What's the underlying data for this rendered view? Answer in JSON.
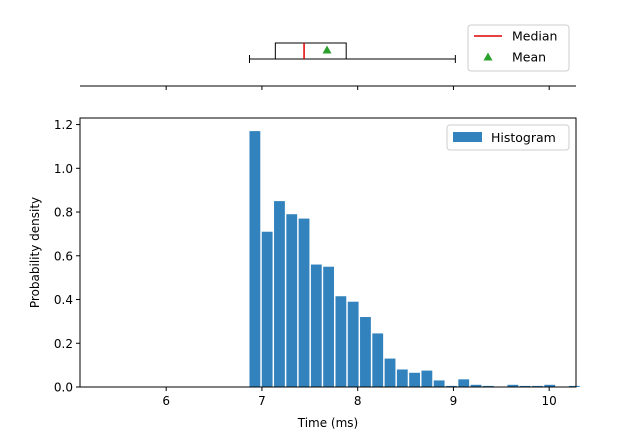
{
  "chart_data": [
    {
      "type": "box",
      "panel": "top",
      "orientation": "horizontal",
      "whisker_low": 6.87,
      "q1": 7.14,
      "median": 7.44,
      "q3": 7.88,
      "whisker_high": 9.02,
      "mean": 7.68,
      "xlim": [
        5.1,
        10.28
      ],
      "show_y_axis": false,
      "legend": {
        "position": "top-right",
        "entries": [
          {
            "label": "Median",
            "marker": "line",
            "color": "#dd0000"
          },
          {
            "label": "Mean",
            "marker": "triangle",
            "color": "#2ca02c"
          }
        ]
      }
    },
    {
      "type": "bar",
      "subtype": "histogram",
      "panel": "bottom",
      "series": [
        {
          "name": "Histogram",
          "color": "#3182bd",
          "bin_start": 6.87,
          "bin_width": 0.1283,
          "values": [
            1.17,
            0.71,
            0.85,
            0.79,
            0.77,
            0.56,
            0.55,
            0.415,
            0.39,
            0.32,
            0.245,
            0.13,
            0.08,
            0.065,
            0.075,
            0.03,
            0.005,
            0.035,
            0.01,
            0.005,
            0.0,
            0.01,
            0.005,
            0.005,
            0.01,
            0.0,
            0.005
          ]
        }
      ],
      "xlabel": "Time (ms)",
      "ylabel": "Probability density",
      "xlim": [
        5.1,
        10.28
      ],
      "ylim": [
        0,
        1.23
      ],
      "xticks": [
        6,
        7,
        8,
        9,
        10
      ],
      "yticks": [
        0.0,
        0.2,
        0.4,
        0.6,
        0.8,
        1.0,
        1.2
      ],
      "ytick_labels": [
        "0.0",
        "0.2",
        "0.4",
        "0.6",
        "0.8",
        "1.0",
        "1.2"
      ],
      "grid": false,
      "legend": {
        "position": "top-right",
        "entries": [
          {
            "label": "Histogram"
          }
        ]
      }
    }
  ]
}
